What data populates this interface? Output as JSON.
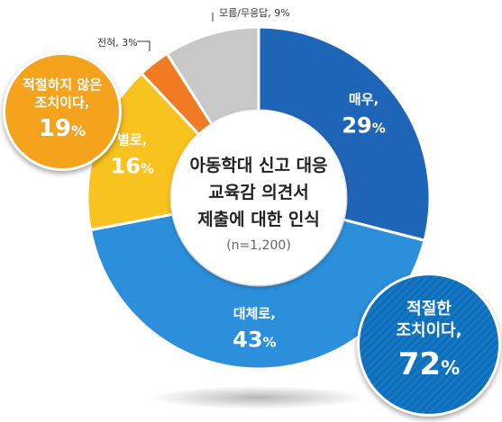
{
  "chart_data": {
    "type": "pie",
    "variant": "donut",
    "title_lines": [
      "아동학대 신고 대응",
      "교육감 의견서",
      "제출에 대한 인식"
    ],
    "subtitle": "(n=1,200)",
    "unit": "%",
    "slices": [
      {
        "label": "매우,",
        "value": 29,
        "color": "#1f65b7"
      },
      {
        "label": "대체로,",
        "value": 43,
        "color": "#2b8fdc"
      },
      {
        "label": "별로,",
        "value": 16,
        "color": "#f8c21f"
      },
      {
        "label": "전혀, 3%",
        "value": 3,
        "color": "#f27a23"
      },
      {
        "label": "모름/무응답, 9%",
        "value": 9,
        "color": "#c8c8c8"
      }
    ],
    "summaries": [
      {
        "lines": [
          "적절하지 않은",
          "조치이다,"
        ],
        "value": 19,
        "color": "#f5a21c"
      },
      {
        "lines": [
          "적절한",
          "조치이다,"
        ],
        "value": 72,
        "color": "#0b6fbd"
      }
    ]
  }
}
